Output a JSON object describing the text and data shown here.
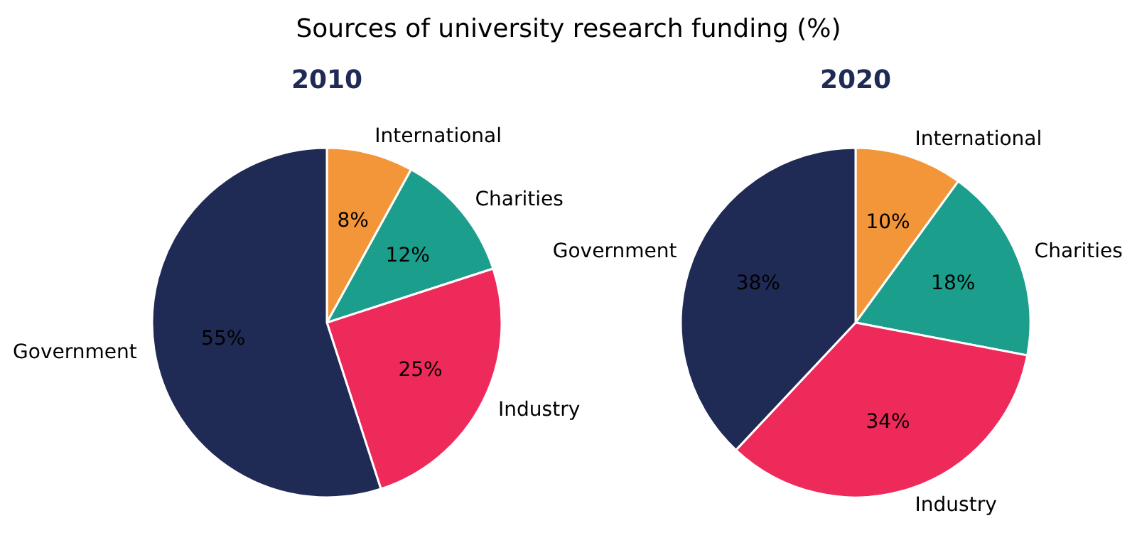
{
  "chart_data": [
    {
      "type": "other",
      "title": "Sources of university research funding (%)"
    },
    {
      "type": "pie",
      "title": "2010",
      "categories": [
        "International",
        "Charities",
        "Industry",
        "Government"
      ],
      "values": [
        8,
        12,
        25,
        55
      ],
      "value_labels": [
        "8%",
        "12%",
        "25%",
        "55%"
      ],
      "colors": [
        "#f39539",
        "#1b9e8c",
        "#ee2a5b",
        "#1f2a55"
      ]
    },
    {
      "type": "pie",
      "title": "2020",
      "categories": [
        "International",
        "Charities",
        "Industry",
        "Government"
      ],
      "values": [
        10,
        18,
        34,
        38
      ],
      "value_labels": [
        "10%",
        "18%",
        "34%",
        "38%"
      ],
      "colors": [
        "#f39539",
        "#1b9e8c",
        "#ee2a5b",
        "#1f2a55"
      ]
    }
  ]
}
